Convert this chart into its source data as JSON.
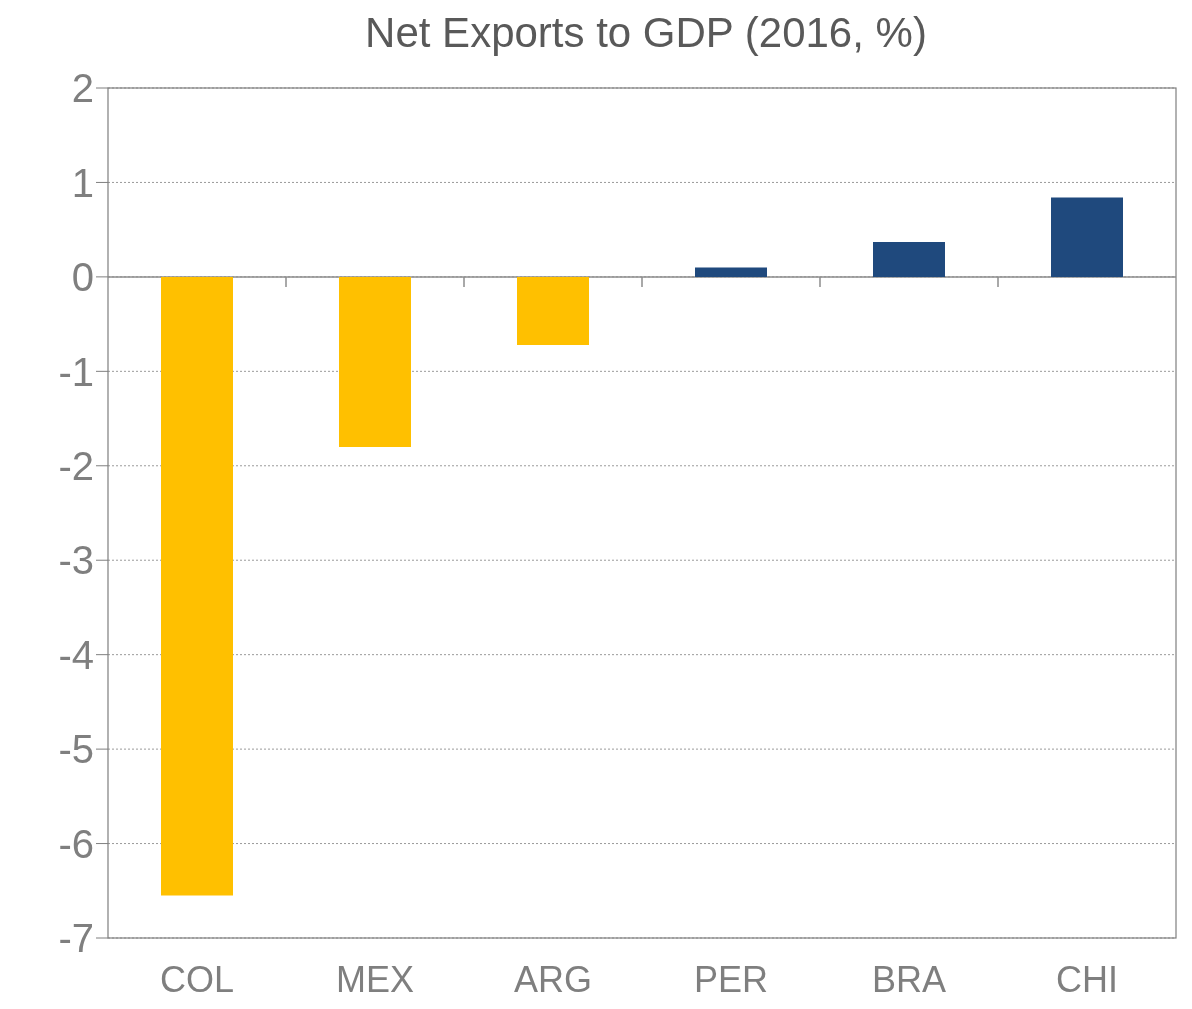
{
  "chart_data": {
    "type": "bar",
    "title": "Net Exports to GDP (2016, %)",
    "categories": [
      "COL",
      "MEX",
      "ARG",
      "PER",
      "BRA",
      "CHI"
    ],
    "values": [
      -6.55,
      -1.8,
      -0.72,
      0.1,
      0.37,
      0.84
    ],
    "colors": [
      "#ffc000",
      "#ffc000",
      "#ffc000",
      "#1f497d",
      "#1f497d",
      "#1f497d"
    ],
    "ylim": [
      -7,
      2
    ],
    "yticks": [
      -7,
      -6,
      -5,
      -4,
      -3,
      -2,
      -1,
      0,
      1,
      2
    ],
    "grid": "y"
  }
}
